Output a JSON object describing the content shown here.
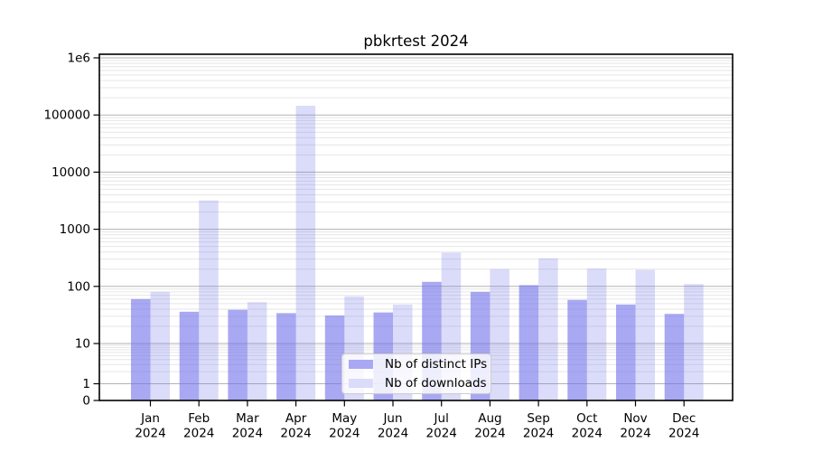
{
  "chart_data": {
    "type": "bar",
    "title": "pbkrtest 2024",
    "year": "2024",
    "categories": [
      "Jan",
      "Feb",
      "Mar",
      "Apr",
      "May",
      "Jun",
      "Jul",
      "Aug",
      "Sep",
      "Oct",
      "Nov",
      "Dec"
    ],
    "series": [
      {
        "name": "Nb of distinct IPs",
        "values": [
          60,
          36,
          39,
          34,
          31,
          35,
          120,
          80,
          105,
          58,
          48,
          33
        ],
        "fill": "#6e6eeb",
        "fill_alpha": 0.6,
        "swatch_fill": "#a8a8f3"
      },
      {
        "name": "Nb of downloads",
        "values": [
          80,
          3200,
          53,
          145000,
          67,
          48,
          390,
          200,
          310,
          205,
          195,
          110
        ],
        "fill": "#6e6eeb",
        "fill_alpha": 0.25,
        "swatch_fill": "#dbdbfa"
      }
    ],
    "yscale": "symlog",
    "ylim": [
      0,
      1000000
    ],
    "ytick_values": [
      0,
      1,
      10,
      100,
      1000,
      10000,
      100000,
      1000000
    ],
    "ytick_labels": [
      "0",
      "1",
      "10",
      "100",
      "1000",
      "10000",
      "100000",
      "1e6"
    ],
    "grid": "both",
    "legend_position": "lower center",
    "colors": {
      "background": "#ffffff",
      "axis": "#000000",
      "major_grid": "#b3b3b3",
      "minor_grid": "#e6e6e6"
    }
  }
}
